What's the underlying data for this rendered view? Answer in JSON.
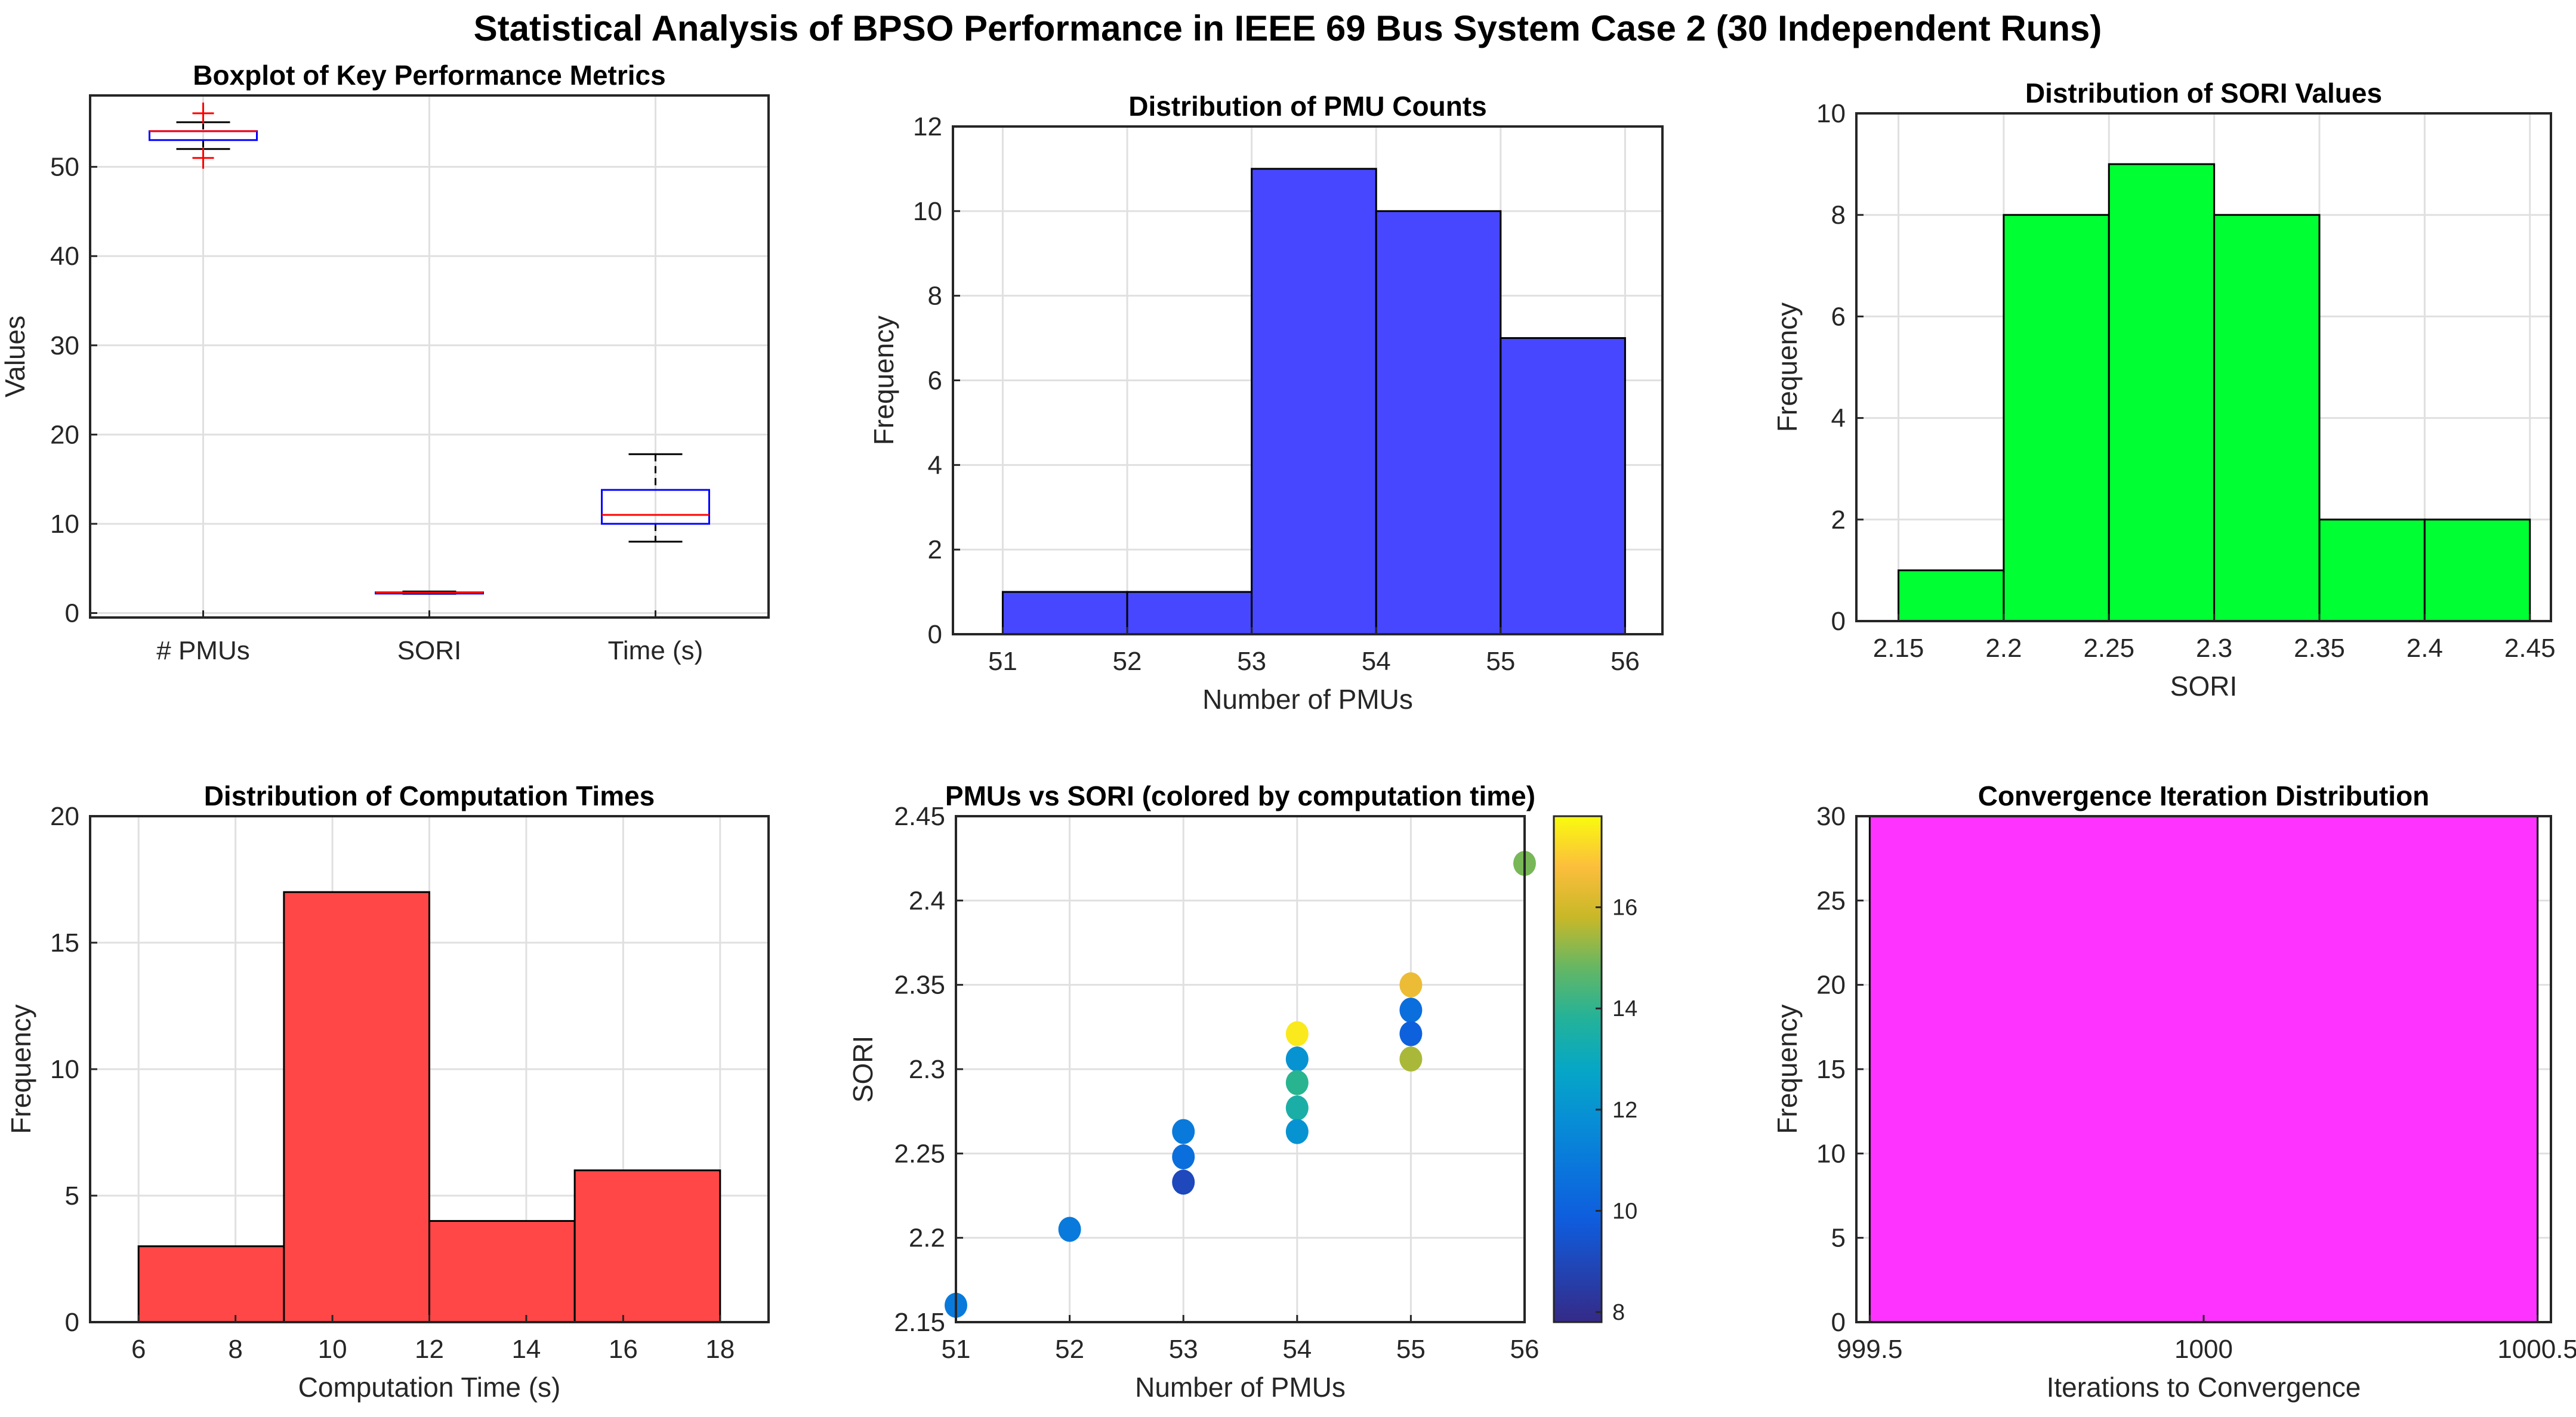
{
  "figure_title": "Statistical Analysis of BPSO Performance in IEEE 69 Bus System Case 2 (30 Independent Runs)",
  "chart_data": [
    {
      "type": "boxplot",
      "title": "Boxplot of Key Performance Metrics",
      "xlabel": "",
      "ylabel": "Values",
      "categories": [
        "# PMUs",
        "SORI",
        "Time (s)"
      ],
      "ylim": [
        -0.5,
        58
      ],
      "yticks": [
        0,
        10,
        20,
        30,
        40,
        50
      ],
      "grid": true,
      "boxes": [
        {
          "q1": 53,
          "median": 54,
          "q3": 54,
          "whisker_low": 52,
          "whisker_high": 55,
          "outliers": [
            51,
            56
          ]
        },
        {
          "q1": 2.25,
          "median": 2.29,
          "q3": 2.32,
          "whisker_low": 2.16,
          "whisker_high": 2.42,
          "outliers": []
        },
        {
          "q1": 10,
          "median": 11,
          "q3": 13.8,
          "whisker_low": 8,
          "whisker_high": 17.8,
          "outliers": []
        }
      ]
    },
    {
      "type": "bar",
      "title": "Distribution of PMU Counts",
      "xlabel": "Number of PMUs",
      "ylabel": "Frequency",
      "bin_edges": [
        51,
        52,
        53,
        54,
        55,
        56
      ],
      "values": [
        1,
        1,
        11,
        10,
        7
      ],
      "xlim": [
        50.6,
        56.3
      ],
      "ylim": [
        0,
        12
      ],
      "xticks": [
        51,
        52,
        53,
        54,
        55,
        56
      ],
      "yticks": [
        0,
        2,
        4,
        6,
        8,
        10,
        12
      ],
      "color": "#4747ff",
      "grid": true
    },
    {
      "type": "bar",
      "title": "Distribution of SORI Values",
      "xlabel": "SORI",
      "ylabel": "Frequency",
      "bin_edges": [
        2.15,
        2.2,
        2.25,
        2.3,
        2.35,
        2.4,
        2.45
      ],
      "values": [
        1,
        8,
        9,
        8,
        2,
        2
      ],
      "xlim": [
        2.13,
        2.46
      ],
      "ylim": [
        0,
        10
      ],
      "xticks": [
        2.15,
        2.2,
        2.25,
        2.3,
        2.35,
        2.4,
        2.45
      ],
      "yticks": [
        0,
        2,
        4,
        6,
        8,
        10
      ],
      "color": "#00ff33",
      "grid": true
    },
    {
      "type": "bar",
      "title": "Distribution of Computation Times",
      "xlabel": "Computation Time (s)",
      "ylabel": "Frequency",
      "bin_edges": [
        6,
        9,
        12,
        15,
        18
      ],
      "values": [
        3,
        17,
        4,
        6
      ],
      "xlim": [
        5,
        19
      ],
      "ylim": [
        0,
        20
      ],
      "xticks": [
        6,
        8,
        10,
        12,
        14,
        16,
        18
      ],
      "yticks": [
        0,
        5,
        10,
        15,
        20
      ],
      "color": "#ff4747",
      "grid": true
    },
    {
      "type": "scatter",
      "title": "PMUs vs SORI (colored by computation time)",
      "xlabel": "Number of PMUs",
      "ylabel": "SORI",
      "xlim": [
        51,
        56
      ],
      "ylim": [
        2.15,
        2.45
      ],
      "xticks": [
        51,
        52,
        53,
        54,
        55,
        56
      ],
      "yticks": [
        2.15,
        2.2,
        2.25,
        2.3,
        2.35,
        2.4,
        2.45
      ],
      "colorbar": {
        "range": [
          7.8,
          17.8
        ],
        "ticks": [
          8,
          10,
          12,
          14,
          16
        ]
      },
      "grid": true,
      "points": [
        {
          "x": 51,
          "y": 2.16,
          "c": 11
        },
        {
          "x": 52,
          "y": 2.205,
          "c": 11
        },
        {
          "x": 53,
          "y": 2.263,
          "c": 11
        },
        {
          "x": 53,
          "y": 2.248,
          "c": 10.5
        },
        {
          "x": 53,
          "y": 2.233,
          "c": 9
        },
        {
          "x": 54,
          "y": 2.321,
          "c": 17.5
        },
        {
          "x": 54,
          "y": 2.306,
          "c": 12
        },
        {
          "x": 54,
          "y": 2.292,
          "c": 14
        },
        {
          "x": 54,
          "y": 2.277,
          "c": 13.5
        },
        {
          "x": 54,
          "y": 2.263,
          "c": 12
        },
        {
          "x": 55,
          "y": 2.35,
          "c": 16.5
        },
        {
          "x": 55,
          "y": 2.335,
          "c": 10.5
        },
        {
          "x": 55,
          "y": 2.321,
          "c": 10
        },
        {
          "x": 55,
          "y": 2.306,
          "c": 15.5
        },
        {
          "x": 56,
          "y": 2.422,
          "c": 15
        }
      ]
    },
    {
      "type": "bar",
      "title": "Convergence Iteration Distribution",
      "xlabel": "Iterations to Convergence",
      "ylabel": "Frequency",
      "bin_edges": [
        999.5,
        1000.5
      ],
      "values": [
        30
      ],
      "xlim": [
        999.48,
        1000.52
      ],
      "ylim": [
        0,
        30
      ],
      "xticks": [
        999.5,
        1000,
        1000.5
      ],
      "yticks": [
        0,
        5,
        10,
        15,
        20,
        25,
        30
      ],
      "color": "#ff33ff",
      "grid": true
    }
  ]
}
